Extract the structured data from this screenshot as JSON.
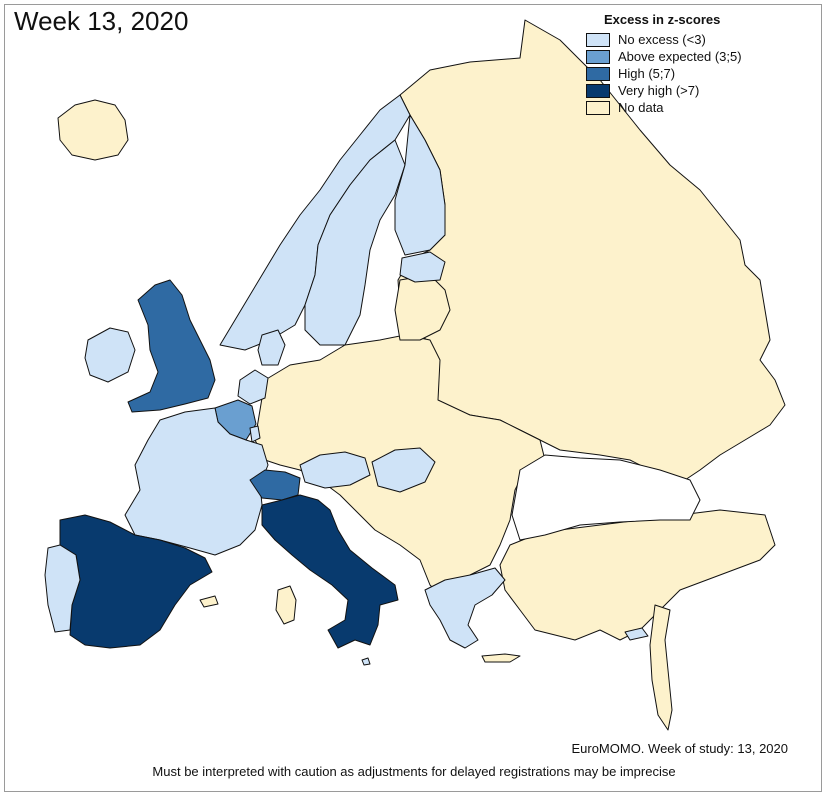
{
  "title": "Week 13, 2020",
  "legend": {
    "title": "Excess in z-scores",
    "items": [
      {
        "label": "No excess (<3)",
        "color": "#cfe3f7"
      },
      {
        "label": "Above expected (3;5)",
        "color": "#6a9fd0"
      },
      {
        "label": "High (5;7)",
        "color": "#2f6aa3"
      },
      {
        "label": "Very high (>7)",
        "color": "#083a6e"
      },
      {
        "label": "No data",
        "color": "#fdf2cc"
      }
    ]
  },
  "colors": {
    "no_data": "#fdf2cc",
    "no_excess": "#cfe3f7",
    "above_expected": "#6a9fd0",
    "high": "#2f6aa3",
    "very_high": "#083a6e",
    "outside": "#ffffff",
    "border": "#111111"
  },
  "regions": [
    {
      "name": "Spain",
      "category": "very_high"
    },
    {
      "name": "Italy",
      "category": "very_high"
    },
    {
      "name": "United Kingdom",
      "category": "high"
    },
    {
      "name": "Switzerland",
      "category": "high"
    },
    {
      "name": "Belgium",
      "category": "above_expected"
    },
    {
      "name": "France",
      "category": "no_excess"
    },
    {
      "name": "Portugal",
      "category": "no_excess"
    },
    {
      "name": "Ireland",
      "category": "no_excess"
    },
    {
      "name": "Netherlands",
      "category": "no_excess"
    },
    {
      "name": "Denmark",
      "category": "no_excess"
    },
    {
      "name": "Norway",
      "category": "no_excess"
    },
    {
      "name": "Sweden",
      "category": "no_excess"
    },
    {
      "name": "Finland",
      "category": "no_excess"
    },
    {
      "name": "Estonia",
      "category": "no_excess"
    },
    {
      "name": "Austria",
      "category": "no_excess"
    },
    {
      "name": "Hungary",
      "category": "no_excess"
    },
    {
      "name": "Greece",
      "category": "no_excess"
    },
    {
      "name": "Malta",
      "category": "no_excess"
    },
    {
      "name": "Cyprus",
      "category": "no_excess"
    },
    {
      "name": "Luxembourg",
      "category": "no_excess"
    },
    {
      "name": "Russia",
      "category": "no_data"
    },
    {
      "name": "Germany",
      "category": "no_data"
    },
    {
      "name": "Poland",
      "category": "no_data"
    },
    {
      "name": "Iceland",
      "category": "no_data"
    },
    {
      "name": "Turkey",
      "category": "no_data"
    },
    {
      "name": "Black Sea",
      "category": "outside"
    }
  ],
  "footer": {
    "source": "EuroMOMO. Week of study: 13, 2020",
    "caution": "Must be interpreted with caution as adjustments for delayed registrations may be imprecise"
  }
}
